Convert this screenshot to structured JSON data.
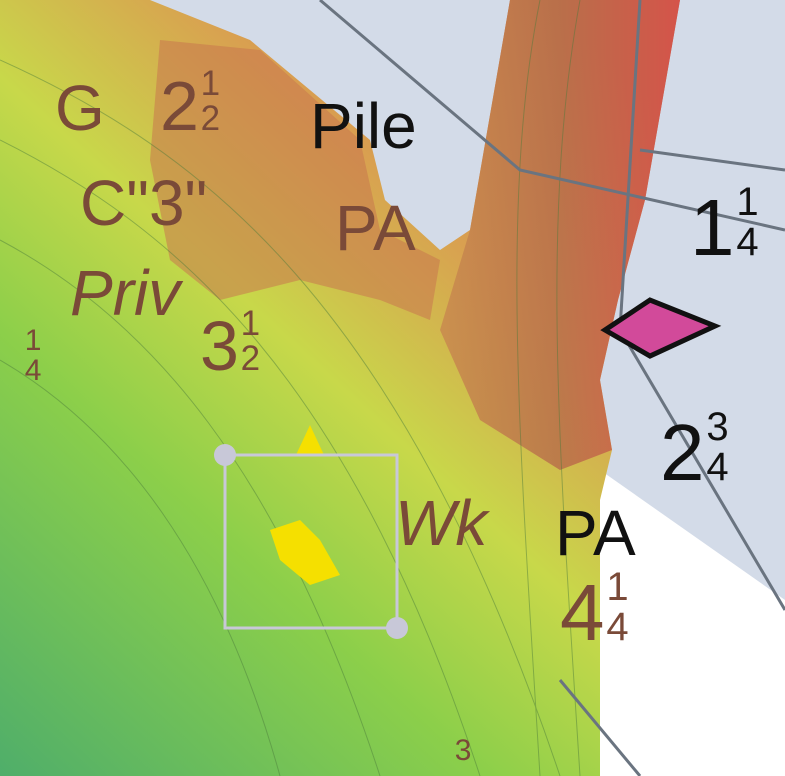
{
  "labels": [
    "G",
    "Pile",
    "C\"3\"",
    "PA",
    "Priv",
    "Wk",
    "PA"
  ],
  "soundings": [
    {
      "whole": "2",
      "num": "1",
      "den": "2"
    },
    {
      "whole": "3",
      "num": "1",
      "den": "2"
    },
    {
      "whole": "",
      "num": "1",
      "den": "4"
    },
    {
      "whole": "1",
      "num": "1",
      "den": "4"
    },
    {
      "whole": "2",
      "num": "3",
      "den": "4"
    },
    {
      "whole": "4",
      "num": "1",
      "den": "4"
    },
    {
      "whole": "",
      "num": "3",
      "den": ""
    }
  ]
}
